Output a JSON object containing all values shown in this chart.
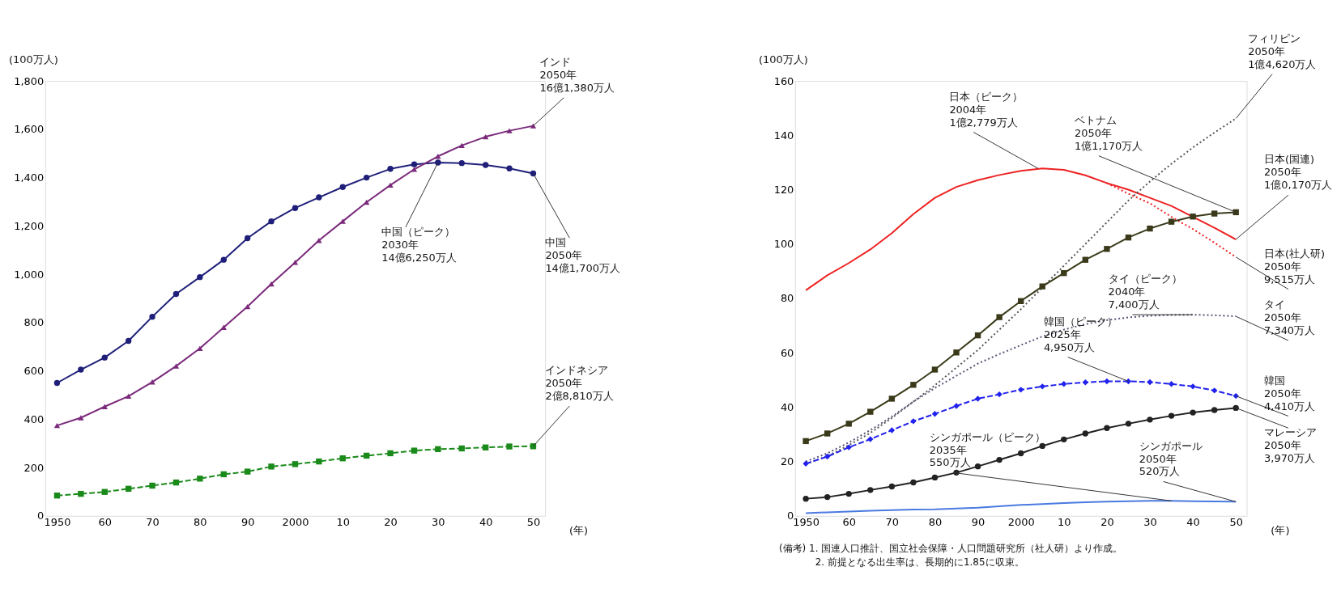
{
  "chart_data": [
    {
      "type": "line",
      "xlabel": "(年)",
      "ylabel": "(100万人)",
      "xlim": [
        1947.5,
        2052.5
      ],
      "ylim": [
        0,
        1800
      ],
      "xticks": [
        {
          "value": 1950,
          "label": "1950"
        },
        {
          "value": 1960,
          "label": "60"
        },
        {
          "value": 1970,
          "label": "70"
        },
        {
          "value": 1980,
          "label": "80"
        },
        {
          "value": 1990,
          "label": "90"
        },
        2000,
        {
          "value": 2010,
          "label": "10"
        },
        {
          "value": 2020,
          "label": "20"
        },
        {
          "value": 2030,
          "label": "30"
        },
        {
          "value": 2040,
          "label": "40"
        },
        {
          "value": 2050,
          "label": "50"
        }
      ],
      "yticks": [
        0,
        200,
        400,
        600,
        800,
        {
          "value": 1000,
          "label": "1,000"
        },
        {
          "value": 1200,
          "label": "1,200"
        },
        {
          "value": 1400,
          "label": "1,400"
        },
        {
          "value": 1600,
          "label": "1,600"
        },
        {
          "value": 1800,
          "label": "1,800"
        }
      ],
      "grid": false,
      "x": [
        1950,
        1955,
        1960,
        1965,
        1970,
        1975,
        1980,
        1985,
        1990,
        1995,
        2000,
        2005,
        2010,
        2015,
        2020,
        2025,
        2030,
        2035,
        2040,
        2045,
        2050
      ],
      "series": [
        {
          "color": "#1f1f7a",
          "marker": "circle",
          "line_style": "solid",
          "values": [
            550,
            605,
            655,
            724,
            824,
            918,
            988,
            1060,
            1149,
            1219,
            1274,
            1318,
            1361,
            1400,
            1436,
            1455,
            1462,
            1460,
            1452,
            1438,
            1417
          ]
        },
        {
          "color": "#7b2a7b",
          "marker": "triangle",
          "line_style": "solid",
          "values": [
            374,
            406,
            452,
            495,
            554,
            620,
            693,
            780,
            866,
            960,
            1049,
            1140,
            1219,
            1298,
            1369,
            1434,
            1488,
            1533,
            1569,
            1594,
            1614
          ]
        },
        {
          "color": "#1a8a1a",
          "marker": "square",
          "line_style": "dashed",
          "values": [
            84,
            91,
            99,
            112,
            125,
            138,
            154,
            172,
            183,
            204,
            214,
            225,
            238,
            249,
            259,
            270,
            276,
            279,
            283,
            287,
            288
          ]
        }
      ],
      "annotations": [
        {
          "text": "インド\n2050年\n16億1,380万人",
          "x": 2050,
          "y": 1614
        },
        {
          "text": "中国（ピーク）\n2030年\n14億6,250万人",
          "x": 2030,
          "y": 1462
        },
        {
          "text": "中国\n2050年\n14億1,700万人",
          "x": 2050,
          "y": 1417
        },
        {
          "text": "インドネシア\n2050年\n2億8,810万人",
          "x": 2050,
          "y": 288
        }
      ]
    },
    {
      "type": "line",
      "xlabel": "(年)",
      "ylabel": "(100万人)",
      "xlim": [
        1947.5,
        2052.5
      ],
      "ylim": [
        0,
        160
      ],
      "xticks": [
        {
          "value": 1950,
          "label": "1950"
        },
        {
          "value": 1960,
          "label": "60"
        },
        {
          "value": 1970,
          "label": "70"
        },
        {
          "value": 1980,
          "label": "80"
        },
        {
          "value": 1990,
          "label": "90"
        },
        2000,
        {
          "value": 2010,
          "label": "10"
        },
        {
          "value": 2020,
          "label": "20"
        },
        {
          "value": 2030,
          "label": "30"
        },
        {
          "value": 2040,
          "label": "40"
        },
        {
          "value": 2050,
          "label": "50"
        }
      ],
      "yticks": [
        0,
        20,
        40,
        60,
        80,
        100,
        120,
        140,
        160
      ],
      "grid": false,
      "x": [
        1950,
        1955,
        1960,
        1965,
        1970,
        1975,
        1980,
        1985,
        1990,
        1995,
        2000,
        2005,
        2010,
        2015,
        2020,
        2025,
        2030,
        2035,
        2040,
        2045,
        2050
      ],
      "series": [
        {
          "color": "#ee2222",
          "marker": "none",
          "line_style": "solid",
          "values": [
            83,
            88.5,
            93,
            98,
            104,
            111,
            117,
            121,
            123.5,
            125.4,
            126.9,
            127.8,
            127.3,
            125.3,
            122.4,
            120,
            117,
            114,
            110,
            106,
            101.7
          ]
        },
        {
          "color": "#ee2222",
          "marker": "none",
          "line_style": "dotted",
          "x": [
            2020,
            2025,
            2030,
            2035,
            2040,
            2045,
            2050
          ],
          "values": [
            122.4,
            118.5,
            115,
            110,
            105.5,
            100.5,
            95.2
          ]
        },
        {
          "color": "#555555",
          "marker": "none",
          "line_style": "dotted",
          "values": [
            19,
            22,
            26,
            30.5,
            36,
            42,
            48,
            54.5,
            61,
            68.5,
            76,
            84,
            92,
            100,
            108,
            116,
            123,
            129.5,
            135.5,
            141,
            146.2
          ]
        },
        {
          "color": "#3a3a1a",
          "marker": "square",
          "line_style": "solid",
          "values": [
            27.5,
            30.3,
            33.9,
            38.3,
            43.1,
            48.2,
            53.8,
            60.1,
            66.4,
            73.1,
            79,
            84.4,
            89.3,
            94.2,
            98.2,
            102.4,
            105.7,
            108.2,
            110.1,
            111.2,
            111.7
          ]
        },
        {
          "color": "#555577",
          "marker": "none",
          "line_style": "dotted",
          "values": [
            20,
            23,
            27,
            31.5,
            36.5,
            42,
            47,
            51.5,
            56,
            59.5,
            62.8,
            66,
            68.5,
            70.5,
            72,
            73,
            73.6,
            73.9,
            74,
            73.8,
            73.4
          ]
        },
        {
          "color": "#2222ee",
          "marker": "diamond",
          "line_style": "dashed",
          "values": [
            19.2,
            21.8,
            25.2,
            28.2,
            31.5,
            34.8,
            37.5,
            40.4,
            43.1,
            44.7,
            46.4,
            47.6,
            48.5,
            49.1,
            49.5,
            49.5,
            49.2,
            48.5,
            47.6,
            46.1,
            44.1
          ]
        },
        {
          "color": "#222222",
          "marker": "circle",
          "line_style": "solid",
          "values": [
            6.3,
            6.9,
            8.1,
            9.5,
            10.8,
            12.3,
            14.1,
            15.9,
            18.2,
            20.6,
            23,
            25.7,
            28.1,
            30.3,
            32.3,
            33.9,
            35.4,
            36.8,
            38,
            38.9,
            39.7
          ]
        },
        {
          "color": "#4a7ae0",
          "marker": "none",
          "line_style": "solid",
          "values": [
            1.0,
            1.3,
            1.6,
            1.9,
            2.1,
            2.3,
            2.4,
            2.7,
            3.0,
            3.5,
            4.0,
            4.3,
            4.7,
            5.0,
            5.2,
            5.4,
            5.5,
            5.5,
            5.4,
            5.3,
            5.2
          ]
        }
      ],
      "annotations": [
        {
          "text": "日本（ピーク）\n2004年\n1億2,779万人",
          "x": 2004,
          "y": 127.8
        },
        {
          "text": "フィリピン\n2050年\n1億4,620万人",
          "x": 2050,
          "y": 146.2
        },
        {
          "text": "ベトナム\n2050年\n1億1,170万人",
          "x": 2050,
          "y": 111.7
        },
        {
          "text": "日本(国連)\n2050年\n1億0,170万人",
          "x": 2050,
          "y": 101.7
        },
        {
          "text": "日本(社人研)\n2050年\n9,515万人",
          "x": 2050,
          "y": 95.2
        },
        {
          "text": "タイ（ピーク）\n2040年\n7,400万人",
          "x": 2040,
          "y": 74
        },
        {
          "text": "タイ\n2050年\n7,340万人",
          "x": 2050,
          "y": 73.4
        },
        {
          "text": "韓国（ピーク）\n2025年\n4,950万人",
          "x": 2025,
          "y": 49.5
        },
        {
          "text": "韓国\n2050年\n4,410万人",
          "x": 2050,
          "y": 44.1
        },
        {
          "text": "マレーシア\n2050年\n3,970万人",
          "x": 2050,
          "y": 39.7
        },
        {
          "text": "シンガポール（ピーク）\n2035年\n550万人",
          "x": 2035,
          "y": 5.5
        },
        {
          "text": "シンガポール\n2050年\n520万人",
          "x": 2050,
          "y": 5.2
        },
        "(備考) 1. 国連人口推計、国立社会保障・人口問題研究所（社人研）より作成。",
        "2. 前提となる出生率は、長期的に1.85に収束。"
      ]
    }
  ]
}
